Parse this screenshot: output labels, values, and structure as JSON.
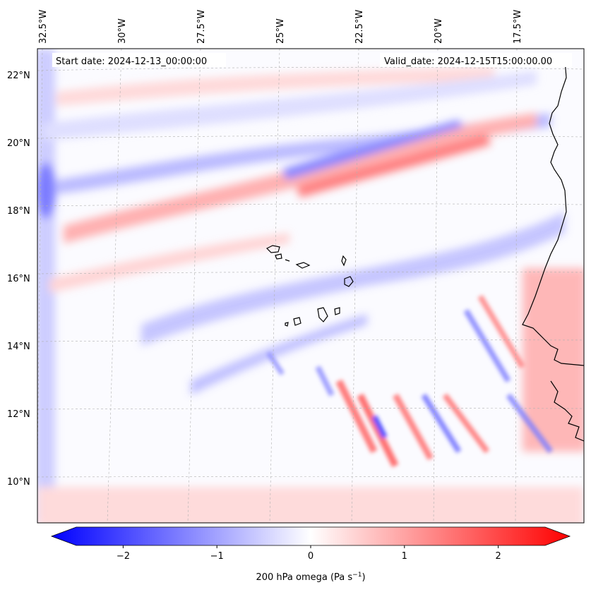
{
  "map": {
    "start_date_label": "Start date: 2024-12-13_00:00:00",
    "valid_date_label": "Valid_date: 2024-12-15T15:00:00.00",
    "lon_labels": [
      "32.5°W",
      "30°W",
      "27.5°W",
      "25°W",
      "22.5°W",
      "20°W",
      "17.5°W"
    ],
    "lat_labels": [
      "22°N",
      "20°N",
      "18°N",
      "16°N",
      "14°N",
      "12°N",
      "10°N"
    ],
    "field": "200 hPa omega",
    "colors": {
      "negative": "#0000ff",
      "neutral": "#ffffff",
      "positive": "#ff0000",
      "coastline": "#000000",
      "grid": "#b0b0b0"
    }
  },
  "colorbar": {
    "label": "200 hPa omega (Pa s",
    "label_superscript": "−1",
    "label_close": ")",
    "tick_labels": [
      "−2",
      "−1",
      "0",
      "1",
      "2"
    ],
    "ticks": [
      -2,
      -1,
      0,
      1,
      2
    ],
    "range": [
      -2.5,
      2.5
    ]
  }
}
